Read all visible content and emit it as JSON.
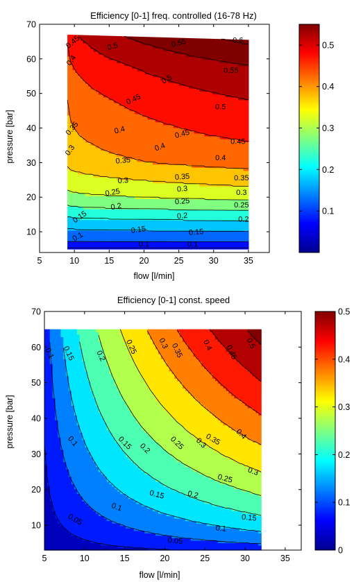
{
  "chart_data": [
    {
      "type": "contour",
      "title": "Efficiency [0-1] freq. controlled (16-78 Hz)",
      "xlabel": "flow [l/min]",
      "ylabel": "pressure [bar]",
      "xlim": [
        5,
        38
      ],
      "ylim": [
        4,
        70
      ],
      "xticks": [
        5,
        10,
        15,
        20,
        25,
        30,
        35
      ],
      "yticks": [
        10,
        20,
        30,
        40,
        50,
        60,
        70
      ],
      "data_extent": {
        "x": [
          9,
          35
        ],
        "y": [
          5,
          67
        ]
      },
      "colorbar": {
        "range": [
          0,
          0.55
        ],
        "ticks": [
          "0.1",
          "0.2",
          "0.3",
          "0.4",
          "0.5"
        ]
      },
      "contour_levels": [
        0.05,
        0.1,
        0.15,
        0.2,
        0.25,
        0.3,
        0.35,
        0.4,
        0.45,
        0.5,
        0.55,
        0.6
      ],
      "contour_labels": [
        {
          "text": "0.1",
          "x": 10.5,
          "y": 8.5,
          "angle": -30
        },
        {
          "text": "0.1",
          "x": 20,
          "y": 6.3,
          "angle": 0
        },
        {
          "text": "0.1",
          "x": 27,
          "y": 6.3,
          "angle": 0
        },
        {
          "text": "0.15",
          "x": 10.8,
          "y": 14.2,
          "angle": -35
        },
        {
          "text": "0.15",
          "x": 19.2,
          "y": 10.5,
          "angle": -8
        },
        {
          "text": "0.15",
          "x": 27.5,
          "y": 9.8,
          "angle": -5
        },
        {
          "text": "0.2",
          "x": 16,
          "y": 17.2,
          "angle": -10
        },
        {
          "text": "0.2",
          "x": 25.5,
          "y": 14.5,
          "angle": -5
        },
        {
          "text": "0.2",
          "x": 34.3,
          "y": 13.5,
          "angle": 0
        },
        {
          "text": "0.25",
          "x": 15.5,
          "y": 21.3,
          "angle": -10
        },
        {
          "text": "0.25",
          "x": 25.5,
          "y": 18.7,
          "angle": -5
        },
        {
          "text": "0.25",
          "x": 34,
          "y": 17.6,
          "angle": 0
        },
        {
          "text": "0.3",
          "x": 17,
          "y": 24.7,
          "angle": -5
        },
        {
          "text": "0.3",
          "x": 25.5,
          "y": 22.3,
          "angle": -5
        },
        {
          "text": "0.3",
          "x": 34,
          "y": 21.2,
          "angle": 0
        },
        {
          "text": "0.35",
          "x": 17,
          "y": 30.5,
          "angle": -5
        },
        {
          "text": "0.35",
          "x": 25.5,
          "y": 25.8,
          "angle": -5
        },
        {
          "text": "0.35",
          "x": 34,
          "y": 25.4,
          "angle": 0
        },
        {
          "text": "0.3",
          "x": 9.4,
          "y": 33.5,
          "angle": -55
        },
        {
          "text": "0.35",
          "x": 9.7,
          "y": 39.8,
          "angle": -50
        },
        {
          "text": "0.4",
          "x": 16.5,
          "y": 39.3,
          "angle": -15
        },
        {
          "text": "0.4",
          "x": 22.3,
          "y": 34.4,
          "angle": -20
        },
        {
          "text": "0.4",
          "x": 31,
          "y": 31.3,
          "angle": 0
        },
        {
          "text": "0.45",
          "x": 18.5,
          "y": 48.2,
          "angle": -25
        },
        {
          "text": "0.45",
          "x": 25.5,
          "y": 38.2,
          "angle": -15
        },
        {
          "text": "0.45",
          "x": 33.5,
          "y": 36,
          "angle": 0
        },
        {
          "text": "0.4",
          "x": 9.6,
          "y": 59.5,
          "angle": -55
        },
        {
          "text": "0.45",
          "x": 9.8,
          "y": 64.8,
          "angle": -40
        },
        {
          "text": "0.5",
          "x": 15.5,
          "y": 63.5,
          "angle": -15
        },
        {
          "text": "0.5",
          "x": 23.3,
          "y": 54,
          "angle": -30
        },
        {
          "text": "0.5",
          "x": 31,
          "y": 46,
          "angle": 0
        },
        {
          "text": "0.55",
          "x": 25,
          "y": 64.5,
          "angle": -15
        },
        {
          "text": "0.55",
          "x": 32.5,
          "y": 56.5,
          "angle": 0
        },
        {
          "text": "0.6",
          "x": 33.5,
          "y": 65.3,
          "angle": 0
        }
      ]
    },
    {
      "type": "contour",
      "title": "Efficiency [0-1] const. speed",
      "xlabel": "flow [l/min]",
      "ylabel": "pressure [bar]",
      "xlim": [
        5,
        37
      ],
      "ylim": [
        3,
        70
      ],
      "xticks": [
        5,
        10,
        15,
        20,
        25,
        30,
        35
      ],
      "yticks": [
        10,
        20,
        30,
        40,
        50,
        60,
        70
      ],
      "data_extent": {
        "x": [
          5,
          32
        ],
        "y": [
          3,
          65
        ]
      },
      "colorbar": {
        "range": [
          0,
          0.5
        ],
        "ticks": [
          "0",
          "0.1",
          "0.2",
          "0.3",
          "0.4",
          "0.5"
        ]
      },
      "contour_levels": [
        0.05,
        0.1,
        0.15,
        0.2,
        0.25,
        0.3,
        0.35,
        0.4,
        0.45,
        0.5
      ],
      "contour_labels": [
        {
          "text": "0.1",
          "x": 5.6,
          "y": 58.2,
          "angle": 65
        },
        {
          "text": "0.15",
          "x": 8,
          "y": 58.2,
          "angle": 65
        },
        {
          "text": "0.2",
          "x": 12,
          "y": 57.5,
          "angle": 65
        },
        {
          "text": "0.25",
          "x": 15.8,
          "y": 60,
          "angle": 65
        },
        {
          "text": "0.3",
          "x": 19.8,
          "y": 61,
          "angle": 65
        },
        {
          "text": "0.35",
          "x": 21.5,
          "y": 59,
          "angle": 65
        },
        {
          "text": "0.4",
          "x": 25.3,
          "y": 60.5,
          "angle": 65
        },
        {
          "text": "0.45",
          "x": 28.3,
          "y": 58.5,
          "angle": 65
        },
        {
          "text": "0.5",
          "x": 30.7,
          "y": 61,
          "angle": 65
        },
        {
          "text": "0.1",
          "x": 8.5,
          "y": 33.5,
          "angle": 50
        },
        {
          "text": "0.15",
          "x": 15,
          "y": 33,
          "angle": 45
        },
        {
          "text": "0.2",
          "x": 17.5,
          "y": 31.5,
          "angle": 45
        },
        {
          "text": "0.25",
          "x": 21.5,
          "y": 33,
          "angle": 45
        },
        {
          "text": "0.3",
          "x": 24.5,
          "y": 33,
          "angle": 45
        },
        {
          "text": "0.35",
          "x": 26,
          "y": 34,
          "angle": 30
        },
        {
          "text": "0.4",
          "x": 29.5,
          "y": 35.5,
          "angle": 45
        },
        {
          "text": "0.05",
          "x": 8.8,
          "y": 11.5,
          "angle": 30
        },
        {
          "text": "0.1",
          "x": 14,
          "y": 15,
          "angle": 20
        },
        {
          "text": "0.15",
          "x": 19,
          "y": 18.5,
          "angle": 15
        },
        {
          "text": "0.2",
          "x": 23.5,
          "y": 18.5,
          "angle": 15
        },
        {
          "text": "0.25",
          "x": 27.5,
          "y": 23,
          "angle": 15
        },
        {
          "text": "0.3",
          "x": 31,
          "y": 25,
          "angle": 20
        },
        {
          "text": "0.05",
          "x": 21.3,
          "y": 5.5,
          "angle": 5
        },
        {
          "text": "0.1",
          "x": 27,
          "y": 9,
          "angle": 5
        },
        {
          "text": "0.15",
          "x": 30.5,
          "y": 12,
          "angle": 5
        }
      ]
    }
  ]
}
